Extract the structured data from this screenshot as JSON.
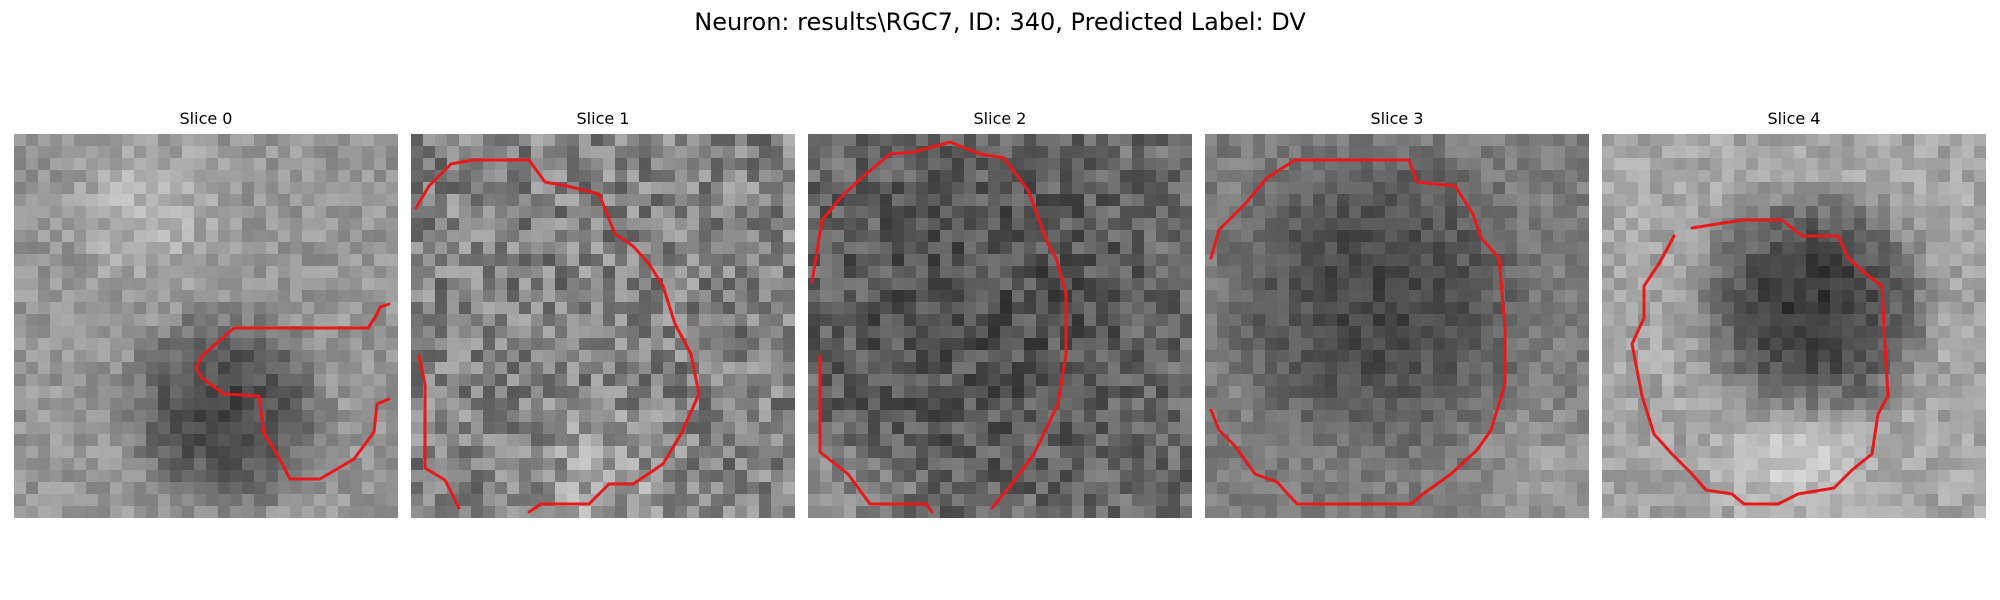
{
  "figure": {
    "title": "Neuron: results\\RGC7, ID: 340, Predicted Label: DV",
    "panels": [
      {
        "title": "Slice 0"
      },
      {
        "title": "Slice 1"
      },
      {
        "title": "Slice 2"
      },
      {
        "title": "Slice 3"
      },
      {
        "title": "Slice 4"
      }
    ],
    "contour_color": "#e8191a"
  }
}
